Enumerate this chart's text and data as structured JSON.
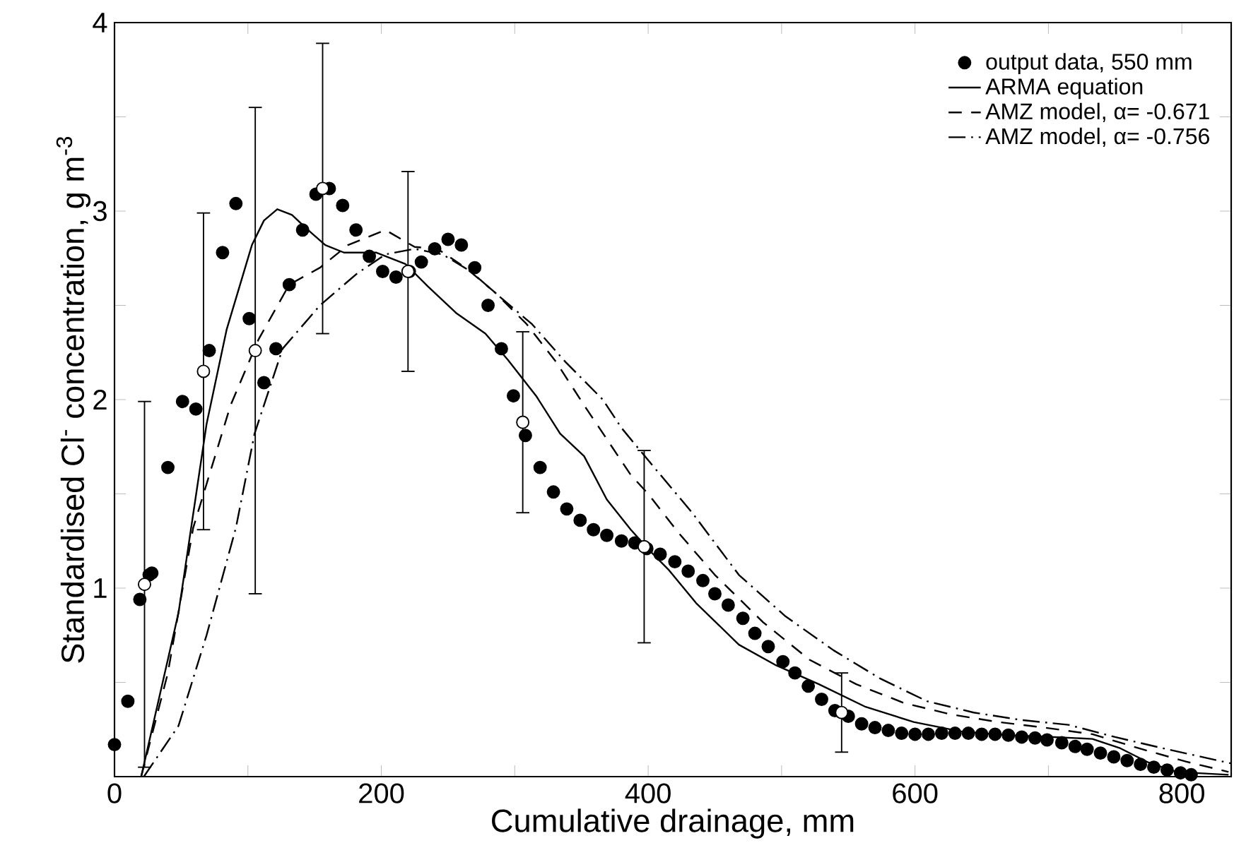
{
  "chart_data": {
    "type": "scatter",
    "xlabel": "Cumulative drainage, mm",
    "ylabel": "Standardised Cl$^{-}$ concentration, g m$^{-3}$",
    "xlim": [
      0,
      837
    ],
    "ylim": [
      0,
      4
    ],
    "xticks": [
      0,
      {
        "value": 100,
        "label": null
      },
      200,
      {
        "value": 300,
        "label": null
      },
      400,
      {
        "value": 500,
        "label": null
      },
      600,
      {
        "value": 700,
        "label": null
      },
      800
    ],
    "yticks": [
      {
        "value": 0,
        "label": null
      },
      {
        "value": 0.5,
        "label": null
      },
      1,
      {
        "value": 1.5,
        "label": null
      },
      2,
      {
        "value": 2.5,
        "label": null
      },
      3,
      {
        "value": 3.5,
        "label": null
      },
      4
    ],
    "legend": "top right",
    "grid": false,
    "series": [
      {
        "name": "output data, 550 mm",
        "marker": "circle",
        "color": "#000000",
        "x": [
          0,
          10,
          19,
          26,
          28,
          40,
          51,
          61,
          71,
          81,
          91,
          101,
          112,
          121,
          131,
          141,
          151,
          161,
          171,
          181,
          191,
          201,
          211,
          221,
          230,
          240,
          250,
          260,
          270,
          280,
          290,
          299,
          308,
          319,
          329,
          339,
          349,
          359,
          369,
          380,
          390,
          399,
          409,
          420,
          430,
          441,
          450,
          460,
          471,
          480,
          490,
          501,
          510,
          520,
          530,
          540,
          550,
          560,
          570,
          580,
          590,
          600,
          610,
          620,
          630,
          640,
          650,
          660,
          670,
          680,
          690,
          699,
          710,
          720,
          729,
          739,
          749,
          759,
          769,
          779,
          789,
          799,
          807
        ],
        "values": [
          0.17,
          0.4,
          0.94,
          1.07,
          1.08,
          1.64,
          1.99,
          1.95,
          2.26,
          2.78,
          3.04,
          2.43,
          2.09,
          2.27,
          2.61,
          2.9,
          3.09,
          3.12,
          3.03,
          2.9,
          2.76,
          2.68,
          2.65,
          2.68,
          2.73,
          2.8,
          2.85,
          2.82,
          2.7,
          2.5,
          2.27,
          2.02,
          1.81,
          1.64,
          1.51,
          1.42,
          1.36,
          1.31,
          1.28,
          1.25,
          1.24,
          1.21,
          1.18,
          1.14,
          1.09,
          1.04,
          0.97,
          0.91,
          0.84,
          0.76,
          0.69,
          0.61,
          0.55,
          0.48,
          0.41,
          0.35,
          0.32,
          0.28,
          0.26,
          0.245,
          0.23,
          0.225,
          0.225,
          0.23,
          0.23,
          0.23,
          0.225,
          0.225,
          0.22,
          0.21,
          0.205,
          0.195,
          0.18,
          0.16,
          0.145,
          0.125,
          0.105,
          0.085,
          0.065,
          0.05,
          0.035,
          0.02,
          0.01
        ]
      },
      {
        "name": "ARMA equation",
        "type": "line",
        "marker": "none",
        "color": "#000000",
        "line_style": "solid",
        "x": [
          20,
          48,
          69,
          84,
          103,
          112,
          122,
          133,
          145,
          158,
          172,
          196,
          218,
          235,
          256,
          278,
          295,
          316,
          334,
          352,
          369,
          387,
          401,
          415,
          436,
          468,
          496,
          528,
          563,
          599,
          634,
          669,
          704,
          733,
          754,
          775,
          796,
          835
        ],
        "values": [
          0,
          0.87,
          1.87,
          2.37,
          2.82,
          2.95,
          3.01,
          2.98,
          2.9,
          2.82,
          2.78,
          2.78,
          2.72,
          2.6,
          2.46,
          2.35,
          2.21,
          2.02,
          1.82,
          1.7,
          1.47,
          1.31,
          1.2,
          1.1,
          0.92,
          0.7,
          0.59,
          0.49,
          0.37,
          0.29,
          0.24,
          0.22,
          0.21,
          0.2,
          0.15,
          0.075,
          0.025,
          0.01
        ]
      },
      {
        "name": "AMZ model, α= -0.671",
        "type": "line",
        "marker": "none",
        "color": "#000000",
        "line_style": "dashed",
        "x": [
          20,
          40,
          59,
          87,
          108,
          131,
          154,
          175,
          203,
          225,
          242,
          263,
          285,
          309,
          331,
          352,
          387,
          400,
          422,
          450,
          486,
          521,
          556,
          592,
          627,
          662,
          697,
          733,
          768,
          803,
          835
        ],
        "values": [
          0,
          0.55,
          1.32,
          1.97,
          2.32,
          2.61,
          2.7,
          2.82,
          2.9,
          2.81,
          2.8,
          2.7,
          2.57,
          2.4,
          2.2,
          1.97,
          1.6,
          1.5,
          1.3,
          1.07,
          0.82,
          0.62,
          0.49,
          0.39,
          0.33,
          0.29,
          0.26,
          0.225,
          0.15,
          0.08,
          0.025
        ]
      },
      {
        "name": "AMZ model, α= -0.756",
        "type": "line",
        "marker": "none",
        "color": "#000000",
        "line_style": "dashdot",
        "x": [
          22,
          48,
          69,
          91,
          105,
          126,
          154,
          182,
          203,
          225,
          246,
          267,
          288,
          313,
          338,
          366,
          380,
          401,
          433,
          468,
          503,
          539,
          574,
          609,
          644,
          680,
          715,
          750,
          786,
          821,
          837
        ],
        "values": [
          0,
          0.27,
          0.75,
          1.32,
          1.82,
          2.27,
          2.5,
          2.67,
          2.77,
          2.8,
          2.77,
          2.68,
          2.55,
          2.4,
          2.2,
          2.0,
          1.85,
          1.67,
          1.4,
          1.07,
          0.85,
          0.67,
          0.52,
          0.4,
          0.34,
          0.3,
          0.275,
          0.21,
          0.15,
          0.095,
          0.07
        ]
      },
      {
        "marker": "circle",
        "color": "#ffffff",
        "x": [
          22.5,
          66.7,
          105.5,
          156,
          220,
          306,
          397,
          545
        ],
        "values": [
          1.02,
          2.15,
          2.26,
          3.12,
          2.68,
          1.88,
          1.22,
          0.34
        ],
        "errors": [
          0.97,
          0.84,
          1.29,
          0.77,
          0.53,
          0.48,
          0.51,
          0.21
        ]
      }
    ]
  }
}
